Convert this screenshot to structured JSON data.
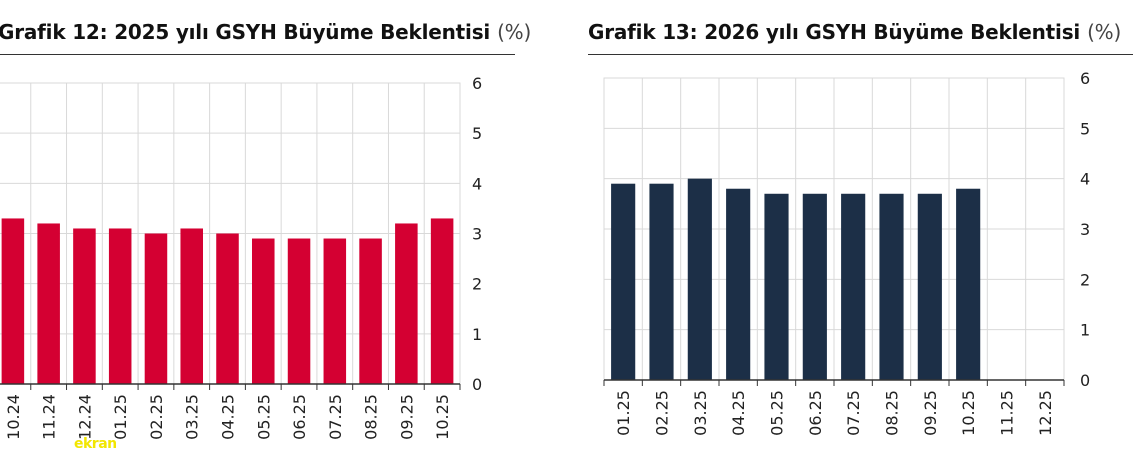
{
  "chart_data": [
    {
      "id": "12",
      "type": "bar",
      "title": "Grafik 12: 2025 yılı GSYH Büyüme Beklentisi",
      "unit": "(%)",
      "categories": [
        "10.24",
        "11.24",
        "12.24",
        "01.25",
        "02.25",
        "03.25",
        "04.25",
        "05.25",
        "06.25",
        "07.25",
        "08.25",
        "09.25",
        "10.25"
      ],
      "values": [
        3.3,
        3.2,
        3.1,
        3.1,
        3.0,
        3.1,
        3.0,
        2.9,
        2.9,
        2.9,
        2.9,
        3.2,
        3.3
      ],
      "ylim": [
        0,
        6
      ],
      "yticks": [
        "0",
        "1",
        "2",
        "3",
        "4",
        "5",
        "6"
      ],
      "bar_color": "#d40032",
      "grid": true
    },
    {
      "id": "13",
      "type": "bar",
      "title": "Grafik 13: 2026 yılı GSYH Büyüme Beklentisi",
      "unit": "(%)",
      "categories": [
        "01.25",
        "02.25",
        "03.25",
        "04.25",
        "05.25",
        "06.25",
        "07.25",
        "08.25",
        "09.25",
        "10.25",
        "11.25",
        "12.25"
      ],
      "values": [
        3.9,
        3.9,
        4.0,
        3.8,
        3.7,
        3.7,
        3.7,
        3.7,
        3.7,
        3.8,
        null,
        null
      ],
      "ylim": [
        0,
        6
      ],
      "yticks": [
        "0",
        "1",
        "2",
        "3",
        "4",
        "5",
        "6"
      ],
      "bar_color": "#1c2f47",
      "grid": true
    }
  ],
  "watermark": "ekran"
}
